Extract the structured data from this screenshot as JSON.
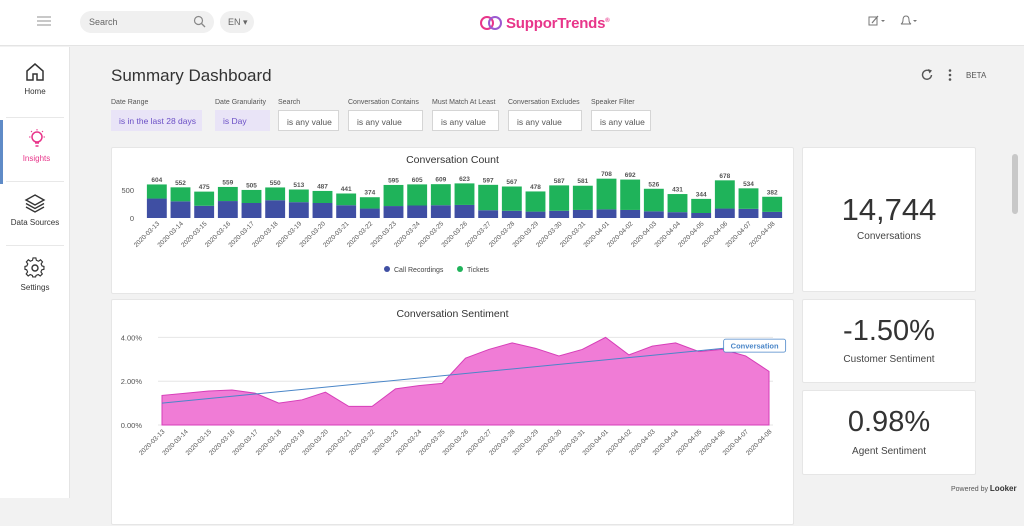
{
  "topbar": {
    "search_placeholder": "Search",
    "language": "EN",
    "logo_text": "SupporTrends",
    "logo_mark": "®"
  },
  "sidebar": {
    "items": [
      {
        "label": "Home",
        "icon": "home-icon"
      },
      {
        "label": "Insights",
        "icon": "lightbulb-icon",
        "active": true
      },
      {
        "label": "Data Sources",
        "icon": "layers-icon"
      },
      {
        "label": "Settings",
        "icon": "gear-icon"
      }
    ]
  },
  "page": {
    "title": "Summary Dashboard",
    "beta": "BETA"
  },
  "filters": [
    {
      "label": "Date Range",
      "value": "is in the last 28 days"
    },
    {
      "label": "Date Granularity",
      "value": "is Day"
    },
    {
      "label": "Search",
      "value": "is any value"
    },
    {
      "label": "Conversation Contains",
      "value": "is any value"
    },
    {
      "label": "Must Match At Least",
      "value": "is any value"
    },
    {
      "label": "Conversation Excludes",
      "value": "is any value"
    },
    {
      "label": "Speaker Filter",
      "value": "is any value"
    }
  ],
  "kpis": {
    "conversations": {
      "value": "14,744",
      "label": "Conversations"
    },
    "customer_sentiment": {
      "value": "-1.50%",
      "label": "Customer Sentiment"
    },
    "agent_sentiment": {
      "value": "0.98%",
      "label": "Agent Sentiment"
    }
  },
  "footer": {
    "powered_by": "Powered by",
    "brand": "Looker"
  },
  "colors": {
    "accent": "#e8358a",
    "recordings": "#3f4fa3",
    "tickets": "#1fb35a",
    "sentiment_fill": "#f07cd6",
    "trend": "#4a86c8"
  },
  "chart_data": [
    {
      "type": "bar",
      "title": "Conversation Count",
      "categories": [
        "2020-03-13",
        "2020-03-14",
        "2020-03-15",
        "2020-03-16",
        "2020-03-17",
        "2020-03-18",
        "2020-03-19",
        "2020-03-20",
        "2020-03-21",
        "2020-03-22",
        "2020-03-23",
        "2020-03-24",
        "2020-03-25",
        "2020-03-26",
        "2020-03-27",
        "2020-03-28",
        "2020-03-29",
        "2020-03-30",
        "2020-03-31",
        "2020-04-01",
        "2020-04-02",
        "2020-04-03",
        "2020-04-04",
        "2020-04-05",
        "2020-04-06",
        "2020-04-07",
        "2020-04-08"
      ],
      "totals": [
        604,
        552,
        475,
        559,
        505,
        550,
        513,
        487,
        441,
        374,
        595,
        605,
        609,
        623,
        597,
        567,
        478,
        587,
        581,
        708,
        692,
        526,
        431,
        344,
        678,
        534,
        382
      ],
      "series": [
        {
          "name": "Call Recordings",
          "values": [
            350,
            300,
            220,
            305,
            270,
            320,
            285,
            270,
            230,
            170,
            215,
            225,
            230,
            235,
            140,
            130,
            115,
            130,
            145,
            155,
            145,
            120,
            105,
            90,
            170,
            165,
            110
          ]
        },
        {
          "name": "Tickets",
          "values": [
            254,
            252,
            255,
            254,
            235,
            230,
            228,
            217,
            211,
            204,
            380,
            380,
            379,
            388,
            457,
            437,
            363,
            457,
            436,
            553,
            547,
            406,
            326,
            254,
            508,
            369,
            272
          ]
        }
      ],
      "yticks": [
        0,
        500
      ],
      "ylim": [
        0,
        720
      ],
      "legend": "bottom-center"
    },
    {
      "type": "area",
      "title": "Conversation Sentiment",
      "x": [
        "2020-03-13",
        "2020-03-14",
        "2020-03-15",
        "2020-03-16",
        "2020-03-17",
        "2020-03-18",
        "2020-03-19",
        "2020-03-20",
        "2020-03-21",
        "2020-03-22",
        "2020-03-23",
        "2020-03-24",
        "2020-03-25",
        "2020-03-26",
        "2020-03-27",
        "2020-03-28",
        "2020-03-29",
        "2020-03-30",
        "2020-03-31",
        "2020-04-01",
        "2020-04-02",
        "2020-04-03",
        "2020-04-04",
        "2020-04-05",
        "2020-04-06",
        "2020-04-07",
        "2020-04-08"
      ],
      "series": [
        {
          "name": "Conversation",
          "values": [
            1.35,
            1.45,
            1.55,
            1.6,
            1.45,
            1.0,
            1.15,
            1.5,
            0.85,
            0.85,
            1.65,
            1.8,
            1.9,
            3.05,
            3.45,
            3.75,
            3.5,
            3.15,
            3.45,
            4.0,
            3.2,
            3.6,
            3.75,
            3.35,
            3.45,
            3.15,
            2.45
          ]
        }
      ],
      "trend": [
        1.0,
        3.55
      ],
      "yticks": [
        "0.00%",
        "2.00%",
        "4.00%"
      ],
      "ylim": [
        0,
        4.2
      ],
      "grid": true
    }
  ]
}
